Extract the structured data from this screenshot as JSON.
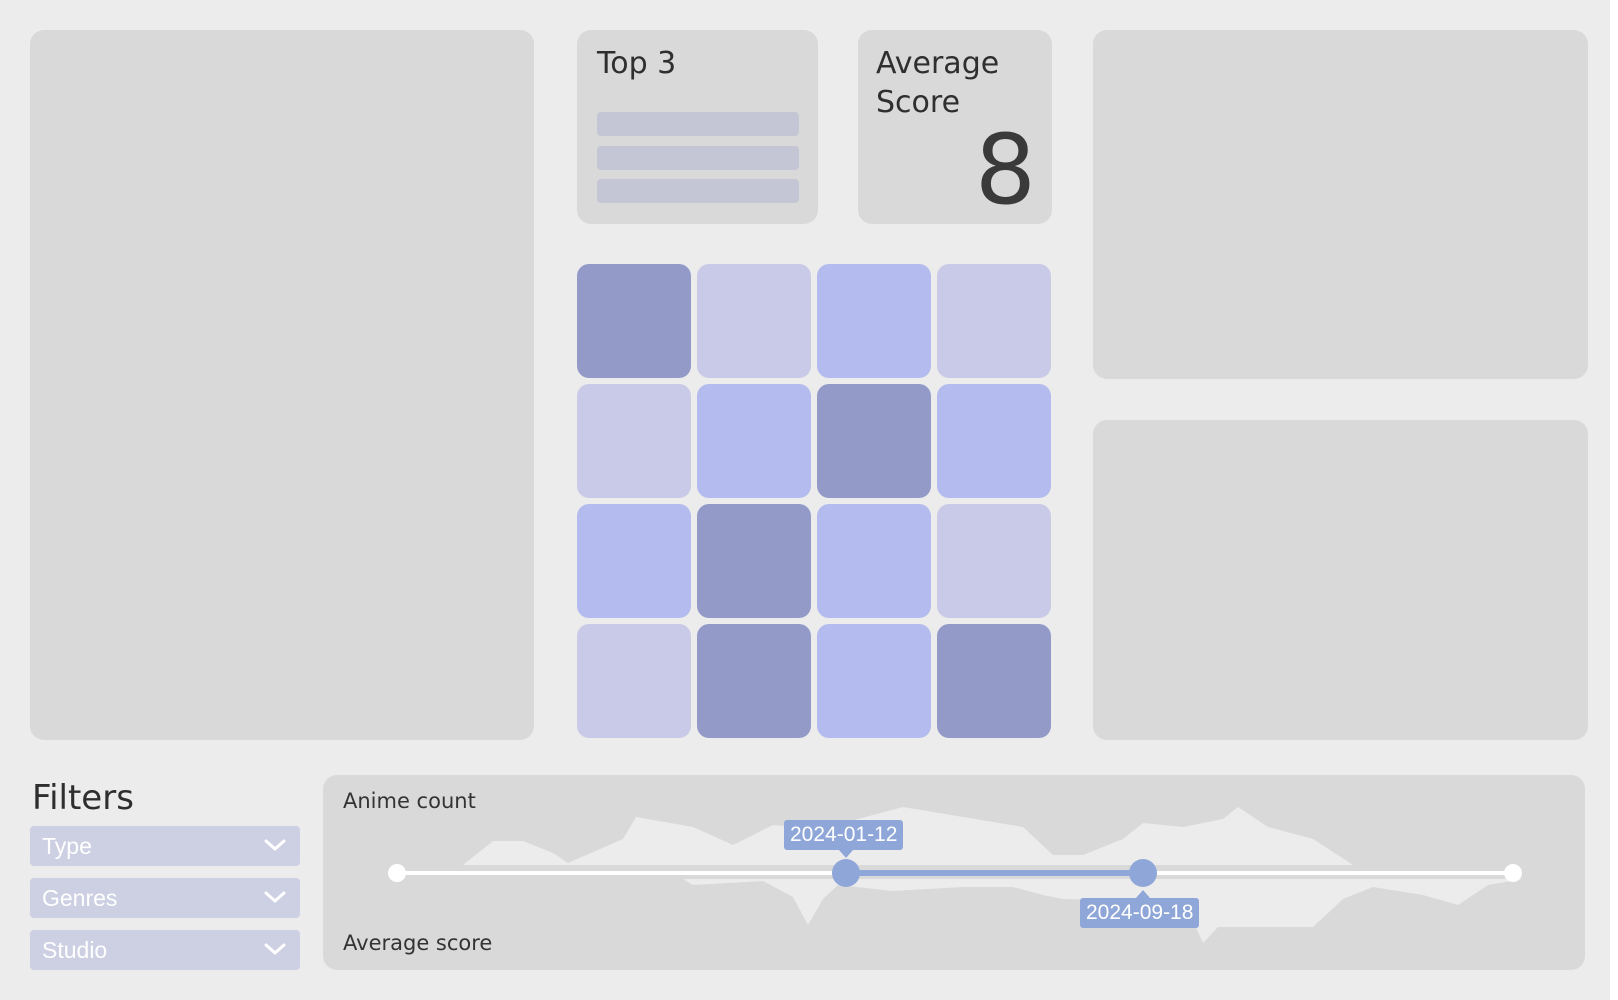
{
  "top3": {
    "title": "Top 3",
    "items": [
      "",
      "",
      ""
    ]
  },
  "average_score": {
    "title_line1": "Average",
    "title_line2": "Score",
    "value": "8"
  },
  "grid": {
    "colors": {
      "dark": "#939ac8",
      "light": "#c9cae8",
      "mid": "#b4bbee"
    },
    "tiles": [
      "dark",
      "light",
      "mid",
      "light",
      "light",
      "mid",
      "dark",
      "mid",
      "mid",
      "dark",
      "mid",
      "light",
      "light",
      "dark",
      "mid",
      "dark"
    ]
  },
  "filters": {
    "title": "Filters",
    "dropdowns": [
      {
        "label": "Type",
        "icon": "chevron-down-icon"
      },
      {
        "label": "Genres",
        "icon": "chevron-down-icon"
      },
      {
        "label": "Studio",
        "icon": "chevron-down-icon"
      }
    ]
  },
  "timeline": {
    "top_label": "Anime count",
    "bottom_label": "Average score",
    "range_start": "2024-01-12",
    "range_end": "2024-09-18",
    "accent": "#8fa6d8"
  }
}
